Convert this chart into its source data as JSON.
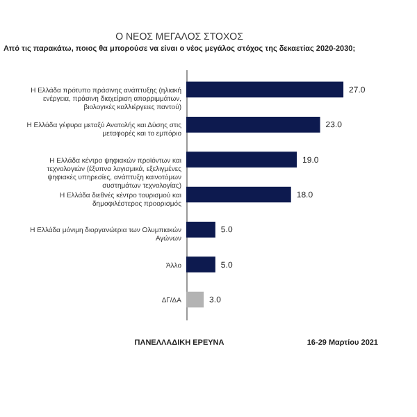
{
  "chart_data": {
    "type": "bar",
    "orientation": "horizontal",
    "title": "Ο ΝΕΟΣ ΜΕΓΑΛΟΣ  ΣΤΟΧΟΣ",
    "subtitle": "Από τις παρακάτω, ποιος θα μπορούσε να είναι ο νέος μεγάλος στόχος της δεκαετίας 2020-2030;",
    "categories": [
      "Η Ελλάδα πρότυπο πράσινης ανάπτυξης (ηλιακή ενέργεια, πράσινη διαχείριση απορριμμάτων, βιολογικές καλλιέργειες παντού)",
      "Η Ελλάδα γέφυρα μεταξύ Ανατολής και Δύσης στις μεταφορές και το εμπόριο",
      "Η Ελλάδα κέντρο ψηφιακών προϊόντων και τεχνολογιών (έξυπνα λογισμικά, εξελιγμένες ψηφιακές υπηρεσίες, ανάπτυξη καινοτόμων συστημάτων τεχνολογίας)",
      "Η Ελλάδα διεθνές κέντρο τουρισμού και δημοφιλέστερος προορισμός",
      "Η Ελλάδα μόνιμη διοργανώτρια των Ολυμπιακών Αγώνων",
      "Άλλο",
      "ΔΓ/ΔΑ"
    ],
    "values": [
      27.0,
      23.0,
      19.0,
      18.0,
      5.0,
      5.0,
      3.0
    ],
    "colors": [
      "#0d1a4f",
      "#0d1a4f",
      "#0d1a4f",
      "#0d1a4f",
      "#0d1a4f",
      "#0d1a4f",
      "#b3b3b3"
    ],
    "value_labels": [
      "27.0",
      "23.0",
      "19.0",
      "18.0",
      "5.0",
      "5.0",
      "3.0"
    ],
    "annotations": [
      "ΠΑΝΕΛΛΑΔΙΚΗ ΕΡΕΥΝΑ",
      "16-29 Μαρτίου 2021"
    ]
  }
}
